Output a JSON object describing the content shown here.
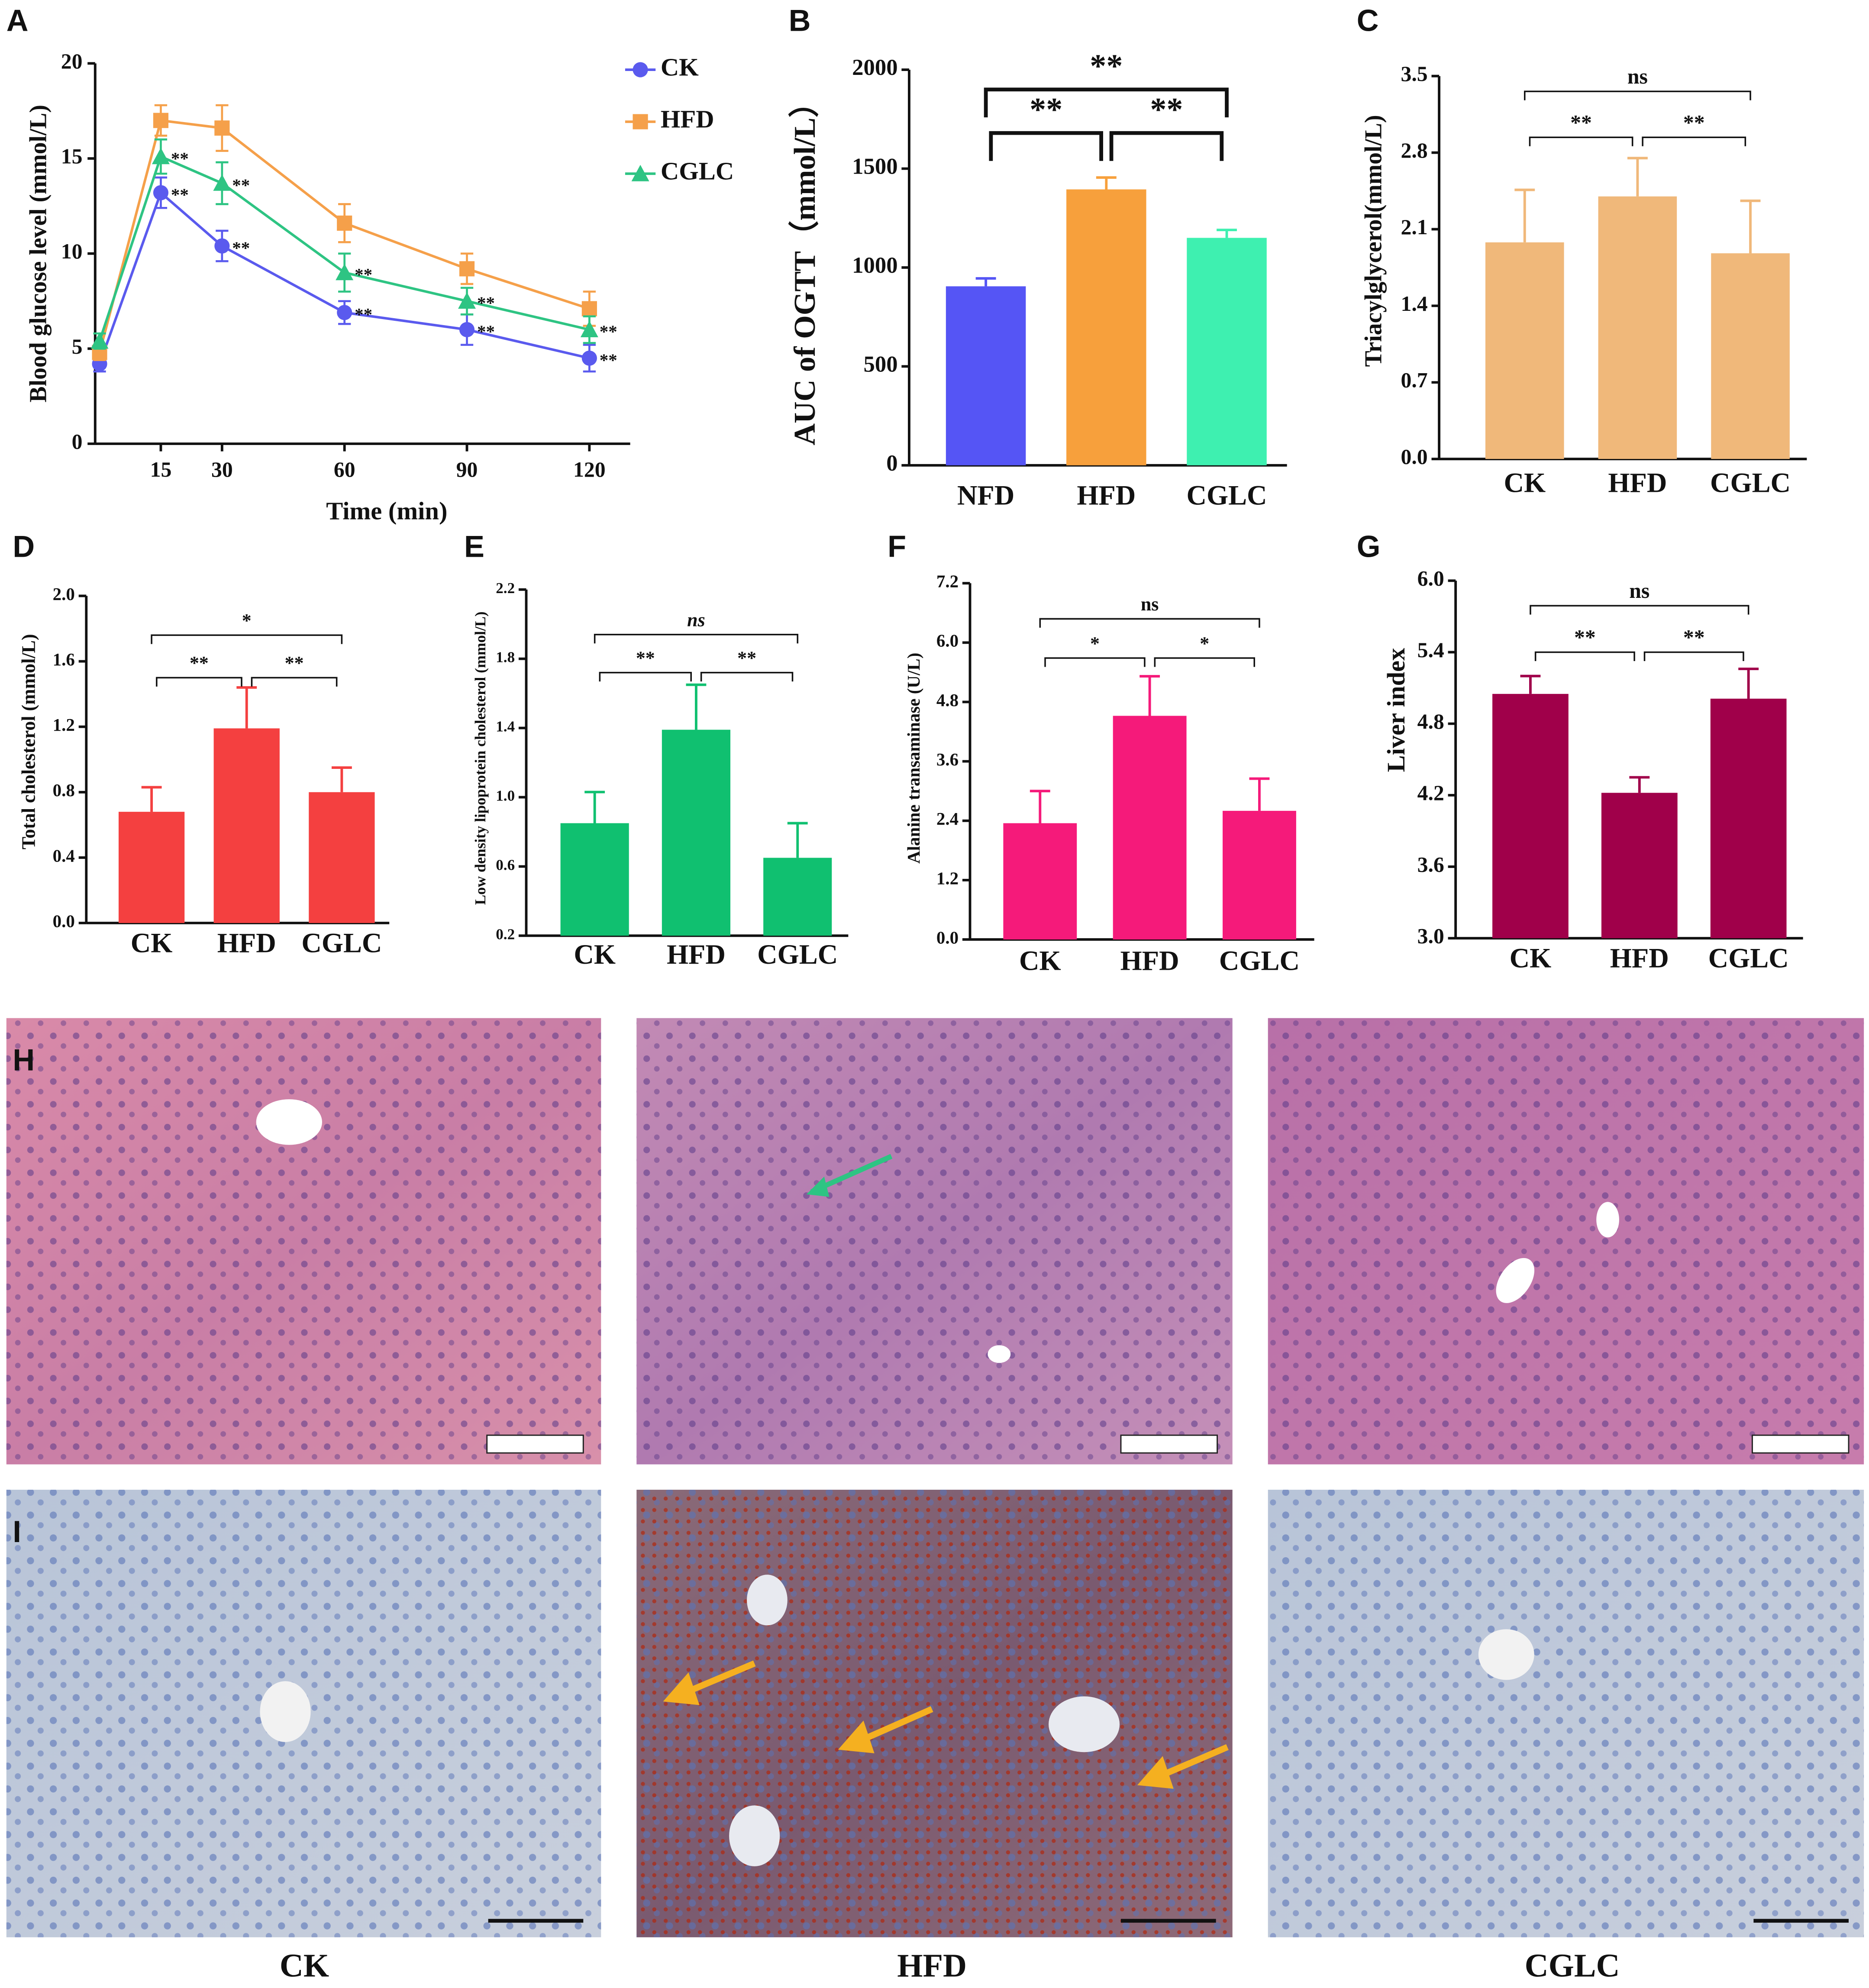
{
  "chart_data": [
    {
      "panel": "A",
      "type": "line",
      "x_label": "Time (min)",
      "y_label": "Blood glucose level (mmol/L)",
      "x": [
        0,
        15,
        30,
        60,
        90,
        120
      ],
      "xlim": [
        0,
        130
      ],
      "xticks": [
        15,
        30,
        60,
        90,
        120
      ],
      "ylim": [
        0,
        20
      ],
      "yticks": [
        0,
        5,
        10,
        15,
        20
      ],
      "legend": "top-right",
      "series": [
        {
          "name": "CK",
          "color": "#5a5aee",
          "marker": "circle",
          "values": [
            4.2,
            13.2,
            10.4,
            6.9,
            6.0,
            4.5
          ],
          "errors": [
            0.4,
            0.8,
            0.8,
            0.6,
            0.8,
            0.7
          ],
          "significance": [
            null,
            "**",
            "**",
            "**",
            "**",
            "**"
          ]
        },
        {
          "name": "HFD",
          "color": "#f5a04a",
          "marker": "square",
          "values": [
            4.8,
            17.0,
            16.6,
            11.6,
            9.2,
            7.1
          ],
          "errors": [
            0.4,
            0.8,
            1.2,
            1.0,
            0.8,
            0.9
          ],
          "significance": [
            null,
            null,
            null,
            null,
            null,
            null
          ]
        },
        {
          "name": "CGLC",
          "color": "#2ec483",
          "marker": "triangle",
          "values": [
            5.4,
            15.1,
            13.7,
            9.0,
            7.5,
            6.0
          ],
          "errors": [
            0.4,
            0.9,
            1.1,
            1.0,
            0.7,
            0.7
          ],
          "significance": [
            null,
            "**",
            "**",
            "**",
            "**",
            "**"
          ]
        }
      ]
    },
    {
      "panel": "B",
      "type": "bar",
      "y_label": "AUC of OGTT（mmol/L）",
      "categories": [
        "NFD",
        "HFD",
        "CGLC"
      ],
      "values": [
        905,
        1395,
        1150
      ],
      "errors": [
        40,
        60,
        40
      ],
      "colors": [
        "#5555f5",
        "#f7a03c",
        "#3ef0b0"
      ],
      "ylim": [
        0,
        2000
      ],
      "yticks": [
        0,
        500,
        1000,
        1500,
        2000
      ],
      "significance": [
        {
          "groups": [
            "NFD",
            "HFD"
          ],
          "label": "**"
        },
        {
          "groups": [
            "HFD",
            "CGLC"
          ],
          "label": "**"
        },
        {
          "groups": [
            "NFD",
            "CGLC"
          ],
          "label": "**"
        }
      ]
    },
    {
      "panel": "C",
      "type": "bar",
      "y_label": "Triacylglycerol(mmol/L)",
      "categories": [
        "CK",
        "HFD",
        "CGLC"
      ],
      "values": [
        1.98,
        2.4,
        1.88
      ],
      "errors": [
        0.48,
        0.35,
        0.48
      ],
      "colors": [
        "#f0b87a",
        "#f0b87a",
        "#f0b87a"
      ],
      "ylim": [
        0,
        3.5
      ],
      "yticks": [
        {
          "value": 0,
          "label": "0.0"
        },
        0.7,
        1.4,
        2.1,
        2.8,
        3.5
      ],
      "significance": [
        {
          "groups": [
            "CK",
            "HFD"
          ],
          "label": "**"
        },
        {
          "groups": [
            "HFD",
            "CGLC"
          ],
          "label": "**"
        },
        {
          "groups": [
            "CK",
            "CGLC"
          ],
          "label": "ns"
        }
      ]
    },
    {
      "panel": "D",
      "type": "bar",
      "y_label": "Total cholesterol (mmol/L)",
      "categories": [
        "CK",
        "HFD",
        "CGLC"
      ],
      "values": [
        0.68,
        1.19,
        0.8
      ],
      "errors": [
        0.15,
        0.25,
        0.15
      ],
      "colors": [
        "#f44040",
        "#f44040",
        "#f44040"
      ],
      "ylim": [
        0,
        2.0
      ],
      "yticks": [
        {
          "value": 0,
          "label": "0.0"
        },
        0.4,
        0.8,
        1.2,
        1.6,
        {
          "value": 2,
          "label": "2.0"
        }
      ],
      "significance": [
        {
          "groups": [
            "CK",
            "HFD"
          ],
          "label": "**"
        },
        {
          "groups": [
            "HFD",
            "CGLC"
          ],
          "label": "**"
        },
        {
          "groups": [
            "CK",
            "CGLC"
          ],
          "label": "*"
        }
      ]
    },
    {
      "panel": "E",
      "type": "bar",
      "y_label": "Low density lipoprotein cholesterol (mmol/L)",
      "categories": [
        "CK",
        "HFD",
        "CGLC"
      ],
      "values": [
        0.85,
        1.39,
        0.65
      ],
      "errors": [
        0.18,
        0.26,
        0.2
      ],
      "colors": [
        "#10c070",
        "#10c070",
        "#10c070"
      ],
      "ylim": [
        0.2,
        2.2
      ],
      "yticks": [
        0.2,
        0.6,
        {
          "value": 1,
          "label": "1.0"
        },
        1.4,
        1.8,
        2.2
      ],
      "significance": [
        {
          "groups": [
            "CK",
            "HFD"
          ],
          "label": "**"
        },
        {
          "groups": [
            "HFD",
            "CGLC"
          ],
          "label": "**"
        },
        {
          "groups": [
            "CK",
            "CGLC"
          ],
          "label": "ns"
        }
      ]
    },
    {
      "panel": "F",
      "type": "bar",
      "y_label": "Alanine transaminase (U/L)",
      "categories": [
        "CK",
        "HFD",
        "CGLC"
      ],
      "values": [
        2.35,
        4.52,
        2.6
      ],
      "errors": [
        0.65,
        0.8,
        0.65
      ],
      "colors": [
        "#f51a7a",
        "#f51a7a",
        "#f51a7a"
      ],
      "ylim": [
        0,
        7.2
      ],
      "yticks": [
        {
          "value": 0,
          "label": "0.0"
        },
        1.2,
        2.4,
        3.6,
        4.8,
        {
          "value": 6,
          "label": "6.0"
        },
        7.2
      ],
      "significance": [
        {
          "groups": [
            "CK",
            "HFD"
          ],
          "label": "*"
        },
        {
          "groups": [
            "HFD",
            "CGLC"
          ],
          "label": "*"
        },
        {
          "groups": [
            "CK",
            "CGLC"
          ],
          "label": "ns"
        }
      ]
    },
    {
      "panel": "G",
      "type": "bar",
      "y_label": "Liver index",
      "categories": [
        "CK",
        "HFD",
        "CGLC"
      ],
      "values": [
        5.05,
        4.22,
        5.01
      ],
      "errors": [
        0.15,
        0.13,
        0.25
      ],
      "colors": [
        "#a0004a",
        "#a0004a",
        "#a0004a"
      ],
      "ylim": [
        3,
        6
      ],
      "yticks": [
        {
          "value": 3,
          "label": "3.0"
        },
        3.6,
        4.2,
        4.8,
        5.4,
        {
          "value": 6,
          "label": "6.0"
        }
      ],
      "significance": [
        {
          "groups": [
            "CK",
            "HFD"
          ],
          "label": "**"
        },
        {
          "groups": [
            "HFD",
            "CGLC"
          ],
          "label": "**"
        },
        {
          "groups": [
            "CK",
            "CGLC"
          ],
          "label": "ns"
        }
      ]
    }
  ],
  "images": {
    "row_h": "H",
    "row_i": "I",
    "columns": [
      "CK",
      "HFD",
      "CGLC"
    ]
  }
}
